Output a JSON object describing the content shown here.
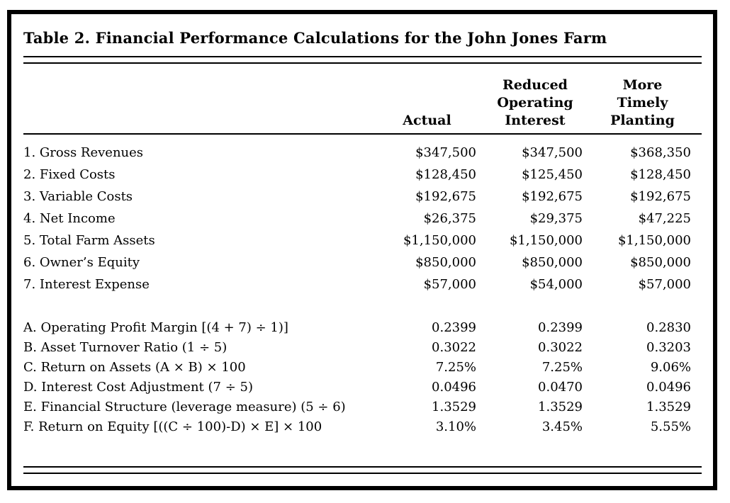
{
  "table": {
    "caption": "Table 2. Financial Performance Calculations for the John Jones Farm",
    "columns": {
      "label": "",
      "col1": "Actual",
      "col2": "Reduced\nOperating\nInterest",
      "col3": "More\nTimely\nPlanting"
    },
    "rows1": [
      {
        "label": "1. Gross Revenues",
        "values": [
          "$347,500",
          "$347,500",
          "$368,350"
        ]
      },
      {
        "label": "2. Fixed Costs",
        "values": [
          "$128,450",
          "$125,450",
          "$128,450"
        ]
      },
      {
        "label": "3. Variable Costs",
        "values": [
          "$192,675",
          "$192,675",
          "$192,675"
        ]
      },
      {
        "label": "4. Net Income",
        "values": [
          "$26,375",
          "$29,375",
          "$47,225"
        ]
      },
      {
        "label": "5. Total Farm Assets",
        "values": [
          "$1,150,000",
          "$1,150,000",
          "$1,150,000"
        ]
      },
      {
        "label": "6. Owner’s Equity",
        "values": [
          "$850,000",
          "$850,000",
          "$850,000"
        ]
      },
      {
        "label": "7. Interest Expense",
        "values": [
          "$57,000",
          "$54,000",
          "$57,000"
        ]
      }
    ],
    "rows2": [
      {
        "label": "A. Operating Profit Margin [(4 + 7) ÷ 1)]",
        "values": [
          "0.2399",
          "0.2399",
          "0.2830"
        ]
      },
      {
        "label": "B. Asset Turnover Ratio (1 ÷ 5)",
        "values": [
          "0.3022",
          "0.3022",
          "0.3203"
        ]
      },
      {
        "label": "C. Return on Assets (A × B) × 100",
        "values": [
          "7.25%",
          "7.25%",
          "9.06%"
        ]
      },
      {
        "label": "D. Interest Cost Adjustment (7 ÷ 5)",
        "values": [
          "0.0496",
          "0.0470",
          "0.0496"
        ]
      },
      {
        "label": "E. Financial Structure (leverage measure) (5 ÷ 6)",
        "values": [
          "1.3529",
          "1.3529",
          "1.3529"
        ]
      },
      {
        "label": "F. Return on Equity [((C ÷ 100)-D) × E] × 100",
        "values": [
          "3.10%",
          "3.45%",
          "5.55%"
        ]
      }
    ],
    "colors": {
      "border": "#000000",
      "text": "#000000",
      "background": "#ffffff"
    }
  }
}
